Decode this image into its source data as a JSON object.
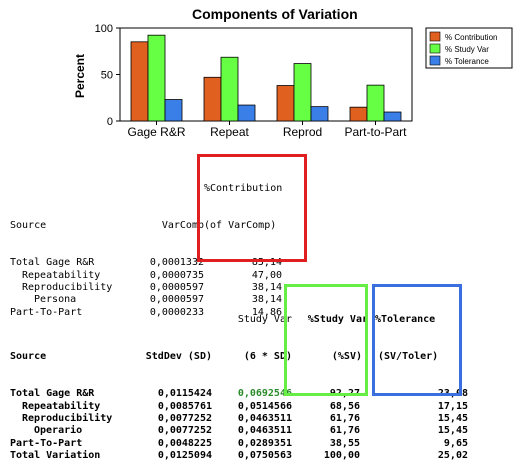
{
  "chart_data": {
    "type": "bar",
    "title": "Components of Variation",
    "xlabel": "",
    "ylabel": "Percent",
    "ylim": [
      0,
      100
    ],
    "yticks": [
      0,
      50,
      100
    ],
    "categories": [
      "Gage R&R",
      "Repeat",
      "Reprod",
      "Part-to-Part"
    ],
    "series": [
      {
        "name": "% Contribution",
        "color": "#e06020",
        "values": [
          85.14,
          47.0,
          38.14,
          14.86
        ]
      },
      {
        "name": "% Study Var",
        "color": "#66ff44",
        "values": [
          92.27,
          68.56,
          61.76,
          38.55
        ]
      },
      {
        "name": "% Tolerance",
        "color": "#3a7ee8",
        "values": [
          23.08,
          17.15,
          15.45,
          9.65
        ]
      }
    ],
    "legend": "top-right"
  },
  "table1": {
    "headers": {
      "source": "Source",
      "varcomp": "VarComp",
      "contrib_line1": "%Contribution",
      "contrib_line2": "(of VarComp)"
    },
    "rows": [
      {
        "source": "Total Gage R&R",
        "indent": 0,
        "varcomp": "0,0001332",
        "contrib": "85,14"
      },
      {
        "source": "Repeatability",
        "indent": 1,
        "varcomp": "0,0000735",
        "contrib": "47,00"
      },
      {
        "source": "Reproducibility",
        "indent": 1,
        "varcomp": "0,0000597",
        "contrib": "38,14"
      },
      {
        "source": "Persona",
        "indent": 2,
        "varcomp": "0,0000597",
        "contrib": "38,14"
      },
      {
        "source": "Part-To-Part",
        "indent": 0,
        "varcomp": "0,0000233",
        "contrib": "14,86"
      }
    ],
    "highlight_color": "#e02020"
  },
  "table2": {
    "headers": {
      "source": "Source",
      "stddev": "StdDev (SD)",
      "studyvar_line1": "Study Var",
      "studyvar_line2": "(6 * SD)",
      "pctsv_line1": "%Study Var",
      "pctsv_line2": "(%SV)",
      "tol_line1": "%Tolerance",
      "tol_line2": "(SV/Toler)"
    },
    "rows": [
      {
        "source": "Total Gage R&R",
        "indent": 0,
        "stddev": "0,0115424",
        "studyvar": "0,0692546",
        "pctsv": "92,27",
        "tol": "23,08"
      },
      {
        "source": "Repeatability",
        "indent": 1,
        "stddev": "0,0085761",
        "studyvar": "0,0514566",
        "pctsv": "68,56",
        "tol": "17,15"
      },
      {
        "source": "Reproducibility",
        "indent": 1,
        "stddev": "0,0077252",
        "studyvar": "0,0463511",
        "pctsv": "61,76",
        "tol": "15,45"
      },
      {
        "source": "Operario",
        "indent": 2,
        "stddev": "0,0077252",
        "studyvar": "0,0463511",
        "pctsv": "61,76",
        "tol": "15,45"
      },
      {
        "source": "Part-To-Part",
        "indent": 0,
        "stddev": "0,0048225",
        "studyvar": "0,0289351",
        "pctsv": "38,55",
        "tol": "9,65"
      },
      {
        "source": "Total Variation",
        "indent": 0,
        "stddev": "0,0125094",
        "studyvar": "0,0750563",
        "pctsv": "100,00",
        "tol": "25,02"
      }
    ],
    "highlight_sv_color": "#66ee44",
    "highlight_tol_color": "#3a6fe0",
    "studyvar_value_color": "#2a8a2a"
  }
}
